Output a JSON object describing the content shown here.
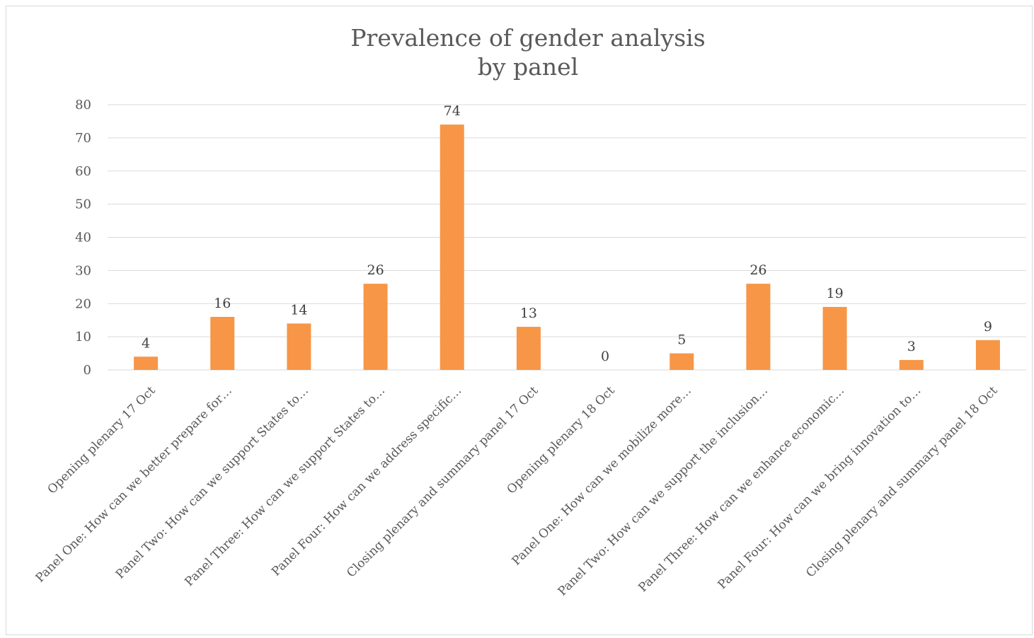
{
  "chart_data": {
    "type": "bar",
    "title": "Prevalence of gender analysis",
    "subtitle": "by panel",
    "xlabel": "",
    "ylabel": "",
    "ylim": [
      0,
      80
    ],
    "yticks": [
      0,
      10,
      20,
      30,
      40,
      50,
      60,
      70,
      80
    ],
    "grid": true,
    "bar_color": "#f79646",
    "categories": [
      "Opening plenary 17 Oct",
      "Panel One: How can we better prepare for…",
      "Panel Two: How can we support States to…",
      "Panel Three: How can we support States to…",
      "Panel Four: How can we address specific…",
      "Closing plenary and summary panel 17 Oct",
      "Opening plenary 18 Oct",
      "Panel One: How can we mobilize more…",
      "Panel Two: How can we support the inclusion…",
      "Panel Three: How can we enhance economic…",
      "Panel Four: How can we bring innovation to…",
      "Closing plenary and summary panel 18 Oct"
    ],
    "values": [
      4,
      16,
      14,
      26,
      74,
      13,
      0,
      5,
      26,
      19,
      3,
      9
    ]
  }
}
